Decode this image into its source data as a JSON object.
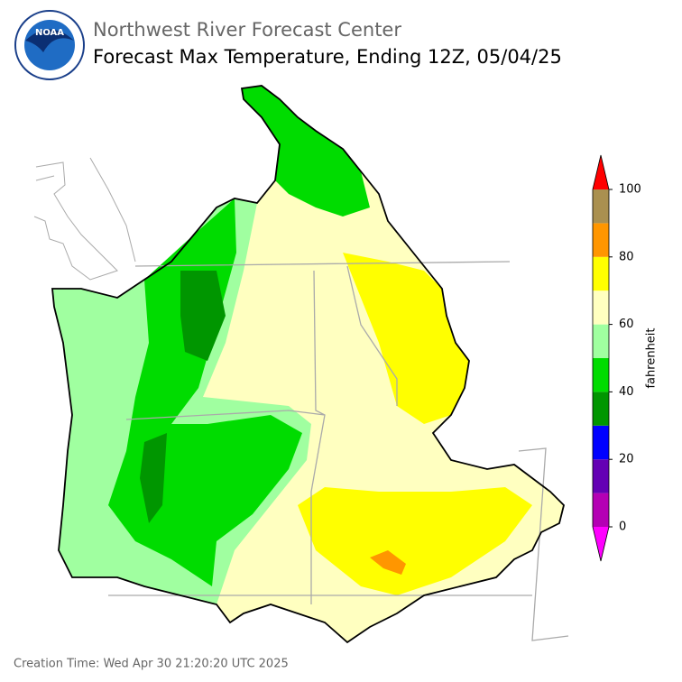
{
  "header": {
    "title": "Northwest River Forecast Center",
    "subtitle": "Forecast Max Temperature, Ending 12Z, 05/04/25"
  },
  "logo": {
    "text": "NOAA"
  },
  "colorbar": {
    "label": "fahrenheit",
    "ticks": [
      0,
      20,
      40,
      60,
      80,
      100
    ],
    "bounds": [
      0,
      10,
      20,
      30,
      40,
      50,
      60,
      70,
      80,
      90,
      100
    ],
    "colors": [
      "#b400b4",
      "#6400b4",
      "#0000ff",
      "#009600",
      "#00dc00",
      "#a0ffa0",
      "#ffffc0",
      "#ffff00",
      "#ff9600",
      "#aa9050"
    ],
    "under_color": "#ff00ff",
    "over_color": "#ff0000"
  },
  "footer": {
    "creation_time": "Creation Time: Wed Apr 30 21:20:20 UTC 2025"
  }
}
